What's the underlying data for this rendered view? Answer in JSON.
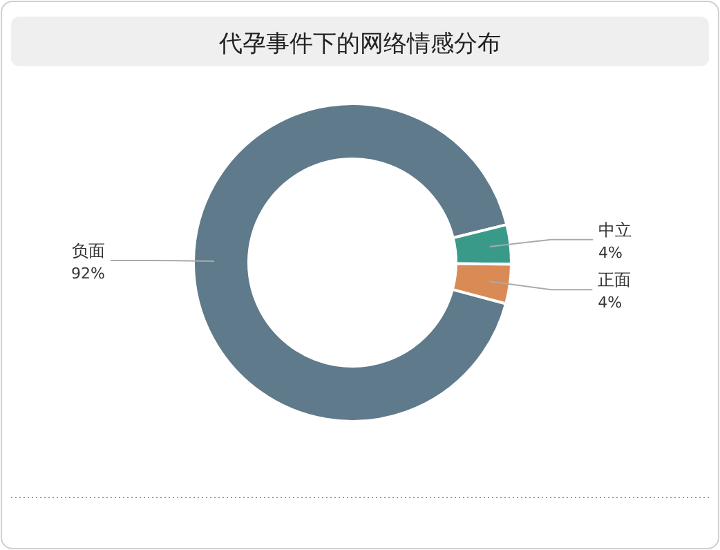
{
  "chart_data": {
    "type": "donut",
    "title": "代孕事件下的网络情感分布",
    "categories": [
      "负面",
      "中立",
      "正面"
    ],
    "values": [
      92,
      4,
      4
    ],
    "colors": [
      "#5f7a8a",
      "#3a9a8a",
      "#d98a55"
    ],
    "value_labels": [
      "92%",
      "4%",
      "4%"
    ]
  }
}
